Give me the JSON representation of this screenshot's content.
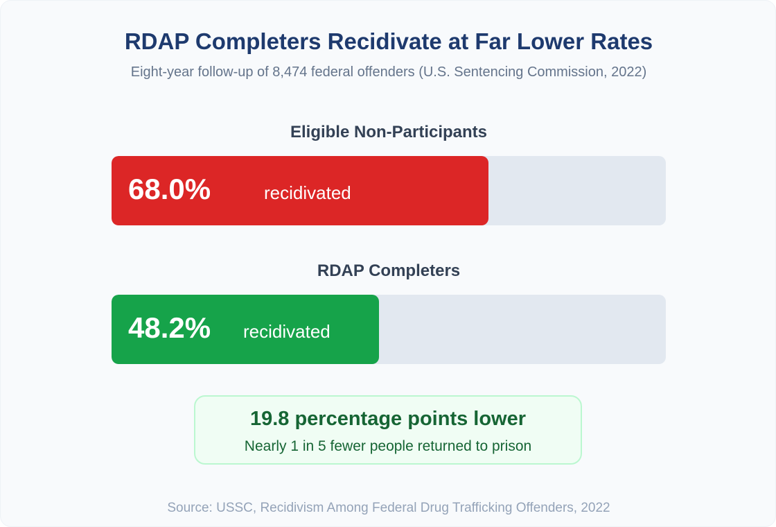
{
  "title": "RDAP Completers Recidivate at Far Lower Rates",
  "subtitle": "Eight-year follow-up of 8,474 federal offenders (U.S. Sentencing Commission, 2022)",
  "chart_data": {
    "type": "bar",
    "orientation": "horizontal",
    "xlim": [
      0,
      100
    ],
    "categories": [
      "Eligible Non-Participants",
      "RDAP Completers"
    ],
    "values": [
      68.0,
      48.2
    ],
    "value_labels": [
      "68.0%",
      "48.2%"
    ],
    "value_suffix": "recidivated",
    "colors": [
      "#dc2626",
      "#16a34a"
    ],
    "track_color": "#e2e8f0"
  },
  "callout": {
    "headline": "19.8 percentage points lower",
    "detail": "Nearly 1 in 5 fewer people returned to prison"
  },
  "source": "Source: USSC, Recidivism Among Federal Drug Trafficking Offenders, 2022"
}
